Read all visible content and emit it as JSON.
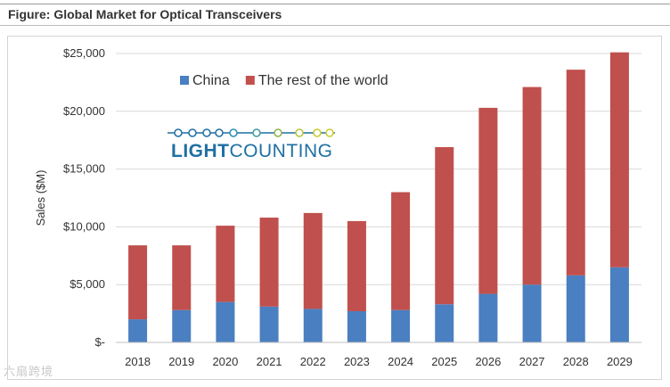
{
  "figure": {
    "title": "Figure: Global Market for Optical Transceivers"
  },
  "logo": {
    "part1": "LIGHT",
    "part2": "COUNTING"
  },
  "watermark": "六扇跨境",
  "colors": {
    "china": "#4a7fc1",
    "rest": "#c0504d",
    "grid": "#d9d9d9",
    "axis_text": "#333333",
    "logo_blue": "#1f6fa3",
    "logo_yellow": "#c9cc2a"
  },
  "chart_data": {
    "type": "bar",
    "stacked": true,
    "title": "",
    "xlabel": "",
    "ylabel": "Sales ($M)",
    "ylim": [
      0,
      25000
    ],
    "yticks": [
      0,
      5000,
      10000,
      15000,
      20000,
      25000
    ],
    "ytick_labels": [
      "$-",
      "$5,000",
      "$10,000",
      "$15,000",
      "$20,000",
      "$25,000"
    ],
    "grid": true,
    "legend_position": "top-left",
    "categories": [
      "2018",
      "2019",
      "2020",
      "2021",
      "2022",
      "2023",
      "2024",
      "2025",
      "2026",
      "2027",
      "2028",
      "2029"
    ],
    "series": [
      {
        "name": "China",
        "color": "#4a7fc1",
        "values": [
          2000,
          2800,
          3500,
          3100,
          2900,
          2700,
          2800,
          3300,
          4200,
          5000,
          5800,
          6500
        ]
      },
      {
        "name": "The rest of the world",
        "color": "#c0504d",
        "values": [
          6400,
          5600,
          6600,
          7700,
          8300,
          7800,
          10200,
          13600,
          16100,
          17100,
          17800,
          18600
        ]
      }
    ]
  }
}
